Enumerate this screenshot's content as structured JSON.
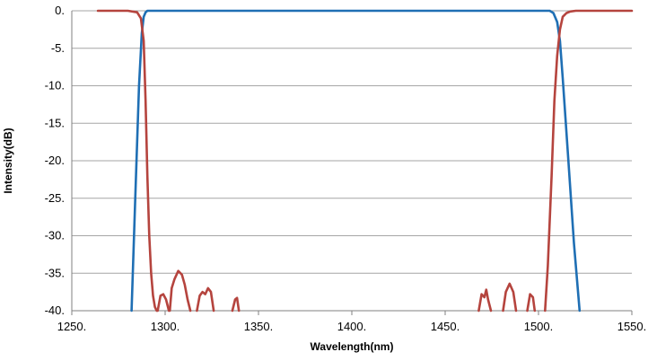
{
  "chart_data": {
    "type": "line",
    "title": "",
    "xlabel": "Wavelength(nm)",
    "ylabel": "Intensity(dB)",
    "xlim": [
      1250,
      1550
    ],
    "ylim": [
      -40,
      0
    ],
    "x_ticks": [
      1250,
      1300,
      1350,
      1400,
      1450,
      1500,
      1550
    ],
    "y_ticks": [
      0,
      -5,
      -10,
      -15,
      -20,
      -25,
      -30,
      -35,
      -40
    ],
    "x_tick_labels": [
      "1250.",
      "1300.",
      "1350.",
      "1400.",
      "1450.",
      "1500.",
      "1550."
    ],
    "y_tick_labels": [
      "0.",
      "-5.",
      "-10.",
      "-15.",
      "-20.",
      "-25.",
      "-30.",
      "-35.",
      "-40."
    ],
    "grid": "horizontal",
    "legend": "none",
    "series": [
      {
        "color": "#1f6fb4",
        "x": [
          1282,
          1284,
          1286,
          1287.5,
          1288.5,
          1289.5,
          1290.5,
          1300,
          1350,
          1400,
          1450,
          1500,
          1506,
          1508,
          1510,
          1511.5,
          1513,
          1516,
          1519,
          1522
        ],
        "y": [
          -40,
          -25,
          -10,
          -3,
          -0.8,
          -0.2,
          0,
          0,
          0,
          0,
          0,
          0,
          0,
          -0.3,
          -1.5,
          -4,
          -9,
          -20,
          -31,
          -40
        ]
      },
      {
        "color": "#b5443e",
        "segments": [
          {
            "x": [
              1264,
              1270,
              1280,
              1285,
              1287,
              1288.5,
              1289.5,
              1290.5,
              1291.5,
              1292.5,
              1293.5,
              1294.5,
              1295.5
            ],
            "y": [
              0,
              0,
              0,
              -0.2,
              -1,
              -4,
              -12,
              -22,
              -30,
              -35,
              -38,
              -39.5,
              -40
            ]
          },
          {
            "x": [
              1296,
              1297.5,
              1299,
              1300.5,
              1302
            ],
            "y": [
              -40,
              -38,
              -37.8,
              -38.5,
              -40
            ]
          },
          {
            "x": [
              1302.5,
              1303.5,
              1305,
              1307,
              1309,
              1310.5,
              1312,
              1313.5
            ],
            "y": [
              -40,
              -37,
              -35.8,
              -34.7,
              -35.2,
              -36.5,
              -38.5,
              -40
            ]
          },
          {
            "x": [
              1317,
              1318.5,
              1320,
              1321.5,
              1323,
              1324.5,
              1326
            ],
            "y": [
              -40,
              -38,
              -37.5,
              -37.8,
              -37,
              -37.5,
              -40
            ]
          },
          {
            "x": [
              1336,
              1337.5,
              1338.5,
              1339.5
            ],
            "y": [
              -40,
              -38.5,
              -38.3,
              -40
            ]
          },
          {
            "x": [
              1468,
              1469.5,
              1471,
              1472,
              1473,
              1474.5
            ],
            "y": [
              -40,
              -37.8,
              -38.2,
              -37.2,
              -38.5,
              -40
            ]
          },
          {
            "x": [
              1481,
              1482.5,
              1484.5,
              1486.5,
              1488
            ],
            "y": [
              -40,
              -37.5,
              -36.4,
              -37.5,
              -40
            ]
          },
          {
            "x": [
              1494,
              1495.5,
              1497,
              1498
            ],
            "y": [
              -40,
              -37.8,
              -38.2,
              -40
            ]
          },
          {
            "x": [
              1503.5,
              1505,
              1507,
              1508.5,
              1510,
              1511.5,
              1513,
              1515,
              1517,
              1520,
              1530,
              1540,
              1550
            ],
            "y": [
              -40,
              -34,
              -22,
              -12,
              -6,
              -2.5,
              -0.8,
              -0.3,
              -0.1,
              0,
              0,
              0,
              0
            ]
          }
        ]
      }
    ]
  }
}
